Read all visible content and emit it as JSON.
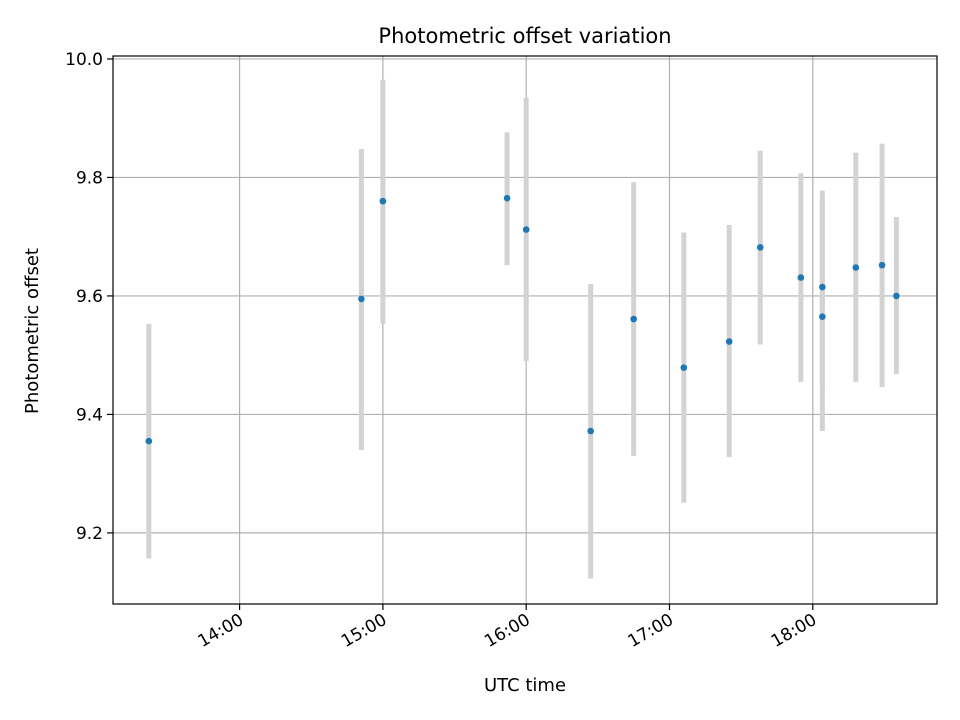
{
  "chart_data": {
    "type": "scatter",
    "title": "Photometric offset variation",
    "xlabel": "UTC time",
    "ylabel": "Photometric offset",
    "x_unit": "UTC time (HH:MM)",
    "xlim": [
      "13:07",
      "18:52"
    ],
    "ylim": [
      9.08,
      10.005
    ],
    "grid": true,
    "x_ticks": [
      "14:00",
      "15:00",
      "16:00",
      "17:00",
      "18:00"
    ],
    "y_ticks": [
      9.2,
      9.4,
      9.6,
      9.8,
      10.0
    ],
    "y_tick_labels": [
      "9.2",
      "9.4",
      "9.6",
      "9.8",
      "10.0"
    ],
    "marker_color": "#1f77b4",
    "errorbar_color": "#d3d3d3",
    "points": [
      {
        "x": "13:22",
        "y": 9.355,
        "ylow": 9.157,
        "yhigh": 9.553
      },
      {
        "x": "14:51",
        "y": 9.595,
        "ylow": 9.34,
        "yhigh": 9.848
      },
      {
        "x": "15:00",
        "y": 9.76,
        "ylow": 9.553,
        "yhigh": 9.965
      },
      {
        "x": "15:52",
        "y": 9.765,
        "ylow": 9.652,
        "yhigh": 9.876
      },
      {
        "x": "16:00",
        "y": 9.712,
        "ylow": 9.49,
        "yhigh": 9.935
      },
      {
        "x": "16:27",
        "y": 9.372,
        "ylow": 9.123,
        "yhigh": 9.62
      },
      {
        "x": "16:45",
        "y": 9.561,
        "ylow": 9.33,
        "yhigh": 9.792
      },
      {
        "x": "17:06",
        "y": 9.479,
        "ylow": 9.251,
        "yhigh": 9.707
      },
      {
        "x": "17:25",
        "y": 9.523,
        "ylow": 9.328,
        "yhigh": 9.72
      },
      {
        "x": "17:38",
        "y": 9.682,
        "ylow": 9.518,
        "yhigh": 9.845
      },
      {
        "x": "17:55",
        "y": 9.631,
        "ylow": 9.455,
        "yhigh": 9.807
      },
      {
        "x": "18:04",
        "y": 9.615,
        "ylow": 9.45,
        "yhigh": 9.778
      },
      {
        "x": "18:04",
        "y": 9.565,
        "ylow": 9.372,
        "yhigh": 9.757
      },
      {
        "x": "18:18",
        "y": 9.648,
        "ylow": 9.455,
        "yhigh": 9.842
      },
      {
        "x": "18:29",
        "y": 9.652,
        "ylow": 9.446,
        "yhigh": 9.857
      },
      {
        "x": "18:35",
        "y": 9.6,
        "ylow": 9.468,
        "yhigh": 9.733
      }
    ]
  }
}
